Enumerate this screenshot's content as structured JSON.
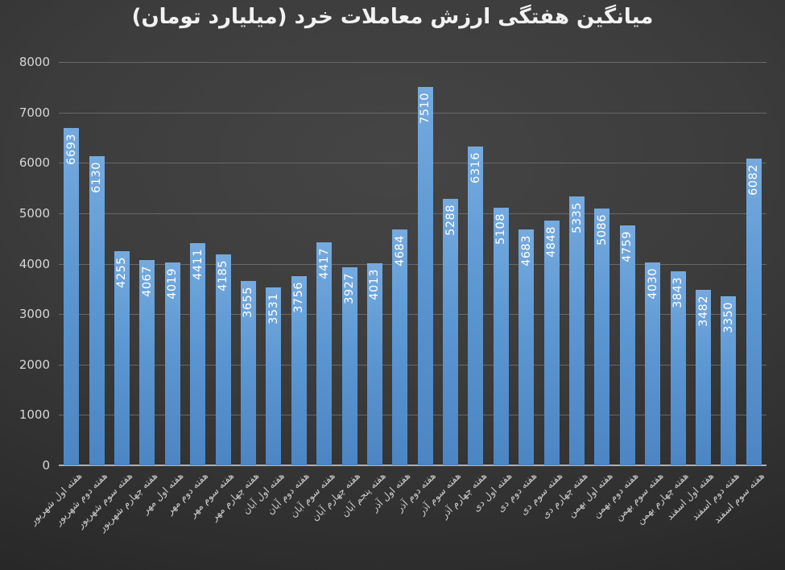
{
  "chart_data": {
    "type": "bar",
    "title": "میانگین هفتگی ارزش معاملات خرد (میلیارد تومان)",
    "categories": [
      "هفته اول شهریور",
      "هفته دوم شهریور",
      "هفته سوم شهریور",
      "هفته چهارم شهریور",
      "هفته اول مهر",
      "هفته دوم مهر",
      "هفته سوم مهر",
      "هفته چهارم مهر",
      "هفته اول آبان",
      "هفته دوم آبان",
      "هفته سوم آبان",
      "هفته چهارم آبان",
      "هفته پنجم آبان",
      "هفته اول آذر",
      "هفته دوم آذر",
      "هفته سوم آذر",
      "هفته چهارم آذر",
      "هفته اول دی",
      "هفته دوم دی",
      "هفته سوم دی",
      "هفته چهارم دی",
      "هفته اول بهمن",
      "هفته دوم بهمن",
      "هفته سوم بهمن",
      "هفته چهارم بهمن",
      "هفته اول اسفند",
      "هفته دوم اسفند",
      "هفته سوم اسفند"
    ],
    "values": [
      6693,
      6130,
      4255,
      4067,
      4019,
      4411,
      4185,
      3655,
      3531,
      3756,
      4417,
      3927,
      4013,
      4684,
      7510,
      5288,
      6316,
      5108,
      4683,
      4848,
      5335,
      5086,
      4759,
      4030,
      3843,
      3482,
      3350,
      6082
    ],
    "xlabel": "",
    "ylabel": "",
    "ylim": [
      0,
      8000
    ],
    "ytick_interval": 1000,
    "yticks": [
      0,
      1000,
      2000,
      3000,
      4000,
      5000,
      6000,
      7000,
      8000
    ],
    "grid": true,
    "legend_position": "none",
    "value_label_position": "inside-end-rotated-270",
    "colors": {
      "bar_top": "#75aadf",
      "bar_mid": "#5b97d2",
      "bar_bottom": "#4c85c3",
      "value_label": "#ffffff",
      "axis_text": "#d6d6d6",
      "category_text": "#cccccc",
      "gridline": "#686868",
      "axis_line": "#b0b0b0",
      "title_text": "#f2f2f2"
    }
  }
}
